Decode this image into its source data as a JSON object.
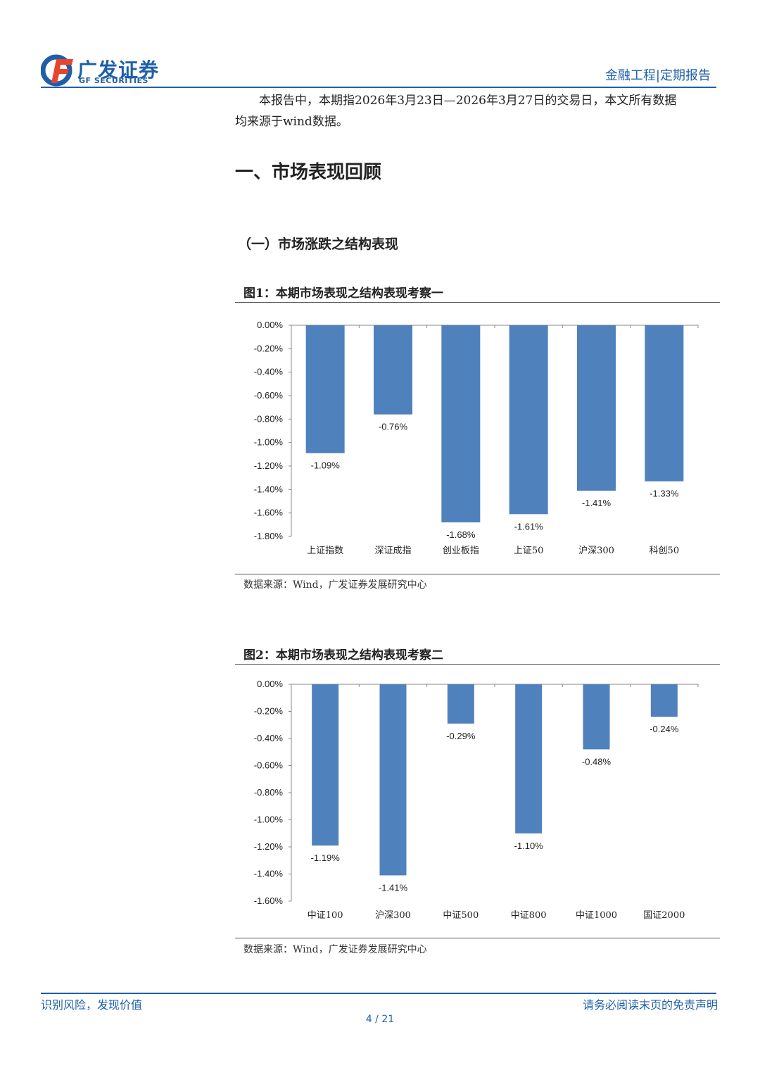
{
  "header": {
    "logo_cn": "广发证券",
    "logo_en": "GF SECURITIES",
    "right_title": "金融工程|定期报告",
    "brand_color": "#1f5fa8"
  },
  "intro": {
    "line1": "本报告中，本期指2026年3月23日—2026年3月27日的交易日，本文所有数据",
    "line2": "均来源于wind数据。"
  },
  "section": {
    "h1": "一、市场表现回顾",
    "h2": "（一）市场涨跌之结构表现"
  },
  "figures": [
    {
      "title": "图1：本期市场表现之结构表现考察一",
      "source": "数据来源：Wind，广发证券发展研究中心"
    },
    {
      "title": "图2：本期市场表现之结构表现考察二",
      "source": "数据来源：Wind，广发证券发展研究中心"
    }
  ],
  "chart_data": [
    {
      "type": "bar",
      "categories": [
        "上证指数",
        "深证成指",
        "创业板指",
        "上证50",
        "沪深300",
        "科创50"
      ],
      "values": [
        -1.09,
        -0.76,
        -1.68,
        -1.61,
        -1.41,
        -1.33
      ],
      "data_labels": [
        "-1.09%",
        "-0.76%",
        "-1.68%",
        "-1.61%",
        "-1.41%",
        "-1.33%"
      ],
      "yticks": [
        "0.00%",
        "-0.20%",
        "-0.40%",
        "-0.60%",
        "-0.80%",
        "-1.00%",
        "-1.20%",
        "-1.40%",
        "-1.60%",
        "-1.80%"
      ],
      "ylim": [
        -1.8,
        0
      ],
      "bar_color": "#4f81bd",
      "grid": false
    },
    {
      "type": "bar",
      "categories": [
        "中证100",
        "沪深300",
        "中证500",
        "中证800",
        "中证1000",
        "国证2000"
      ],
      "values": [
        -1.19,
        -1.41,
        -0.29,
        -1.1,
        -0.48,
        -0.24
      ],
      "data_labels": [
        "-1.19%",
        "-1.41%",
        "-0.29%",
        "-1.10%",
        "-0.48%",
        "-0.24%"
      ],
      "yticks": [
        "0.00%",
        "-0.20%",
        "-0.40%",
        "-0.60%",
        "-0.80%",
        "-1.00%",
        "-1.20%",
        "-1.40%",
        "-1.60%"
      ],
      "ylim": [
        -1.6,
        0
      ],
      "bar_color": "#4f81bd",
      "grid": false
    }
  ],
  "footer": {
    "left": "识别风险，发现价值",
    "right": "请务必阅读末页的免责声明",
    "page": "4 / 21"
  }
}
